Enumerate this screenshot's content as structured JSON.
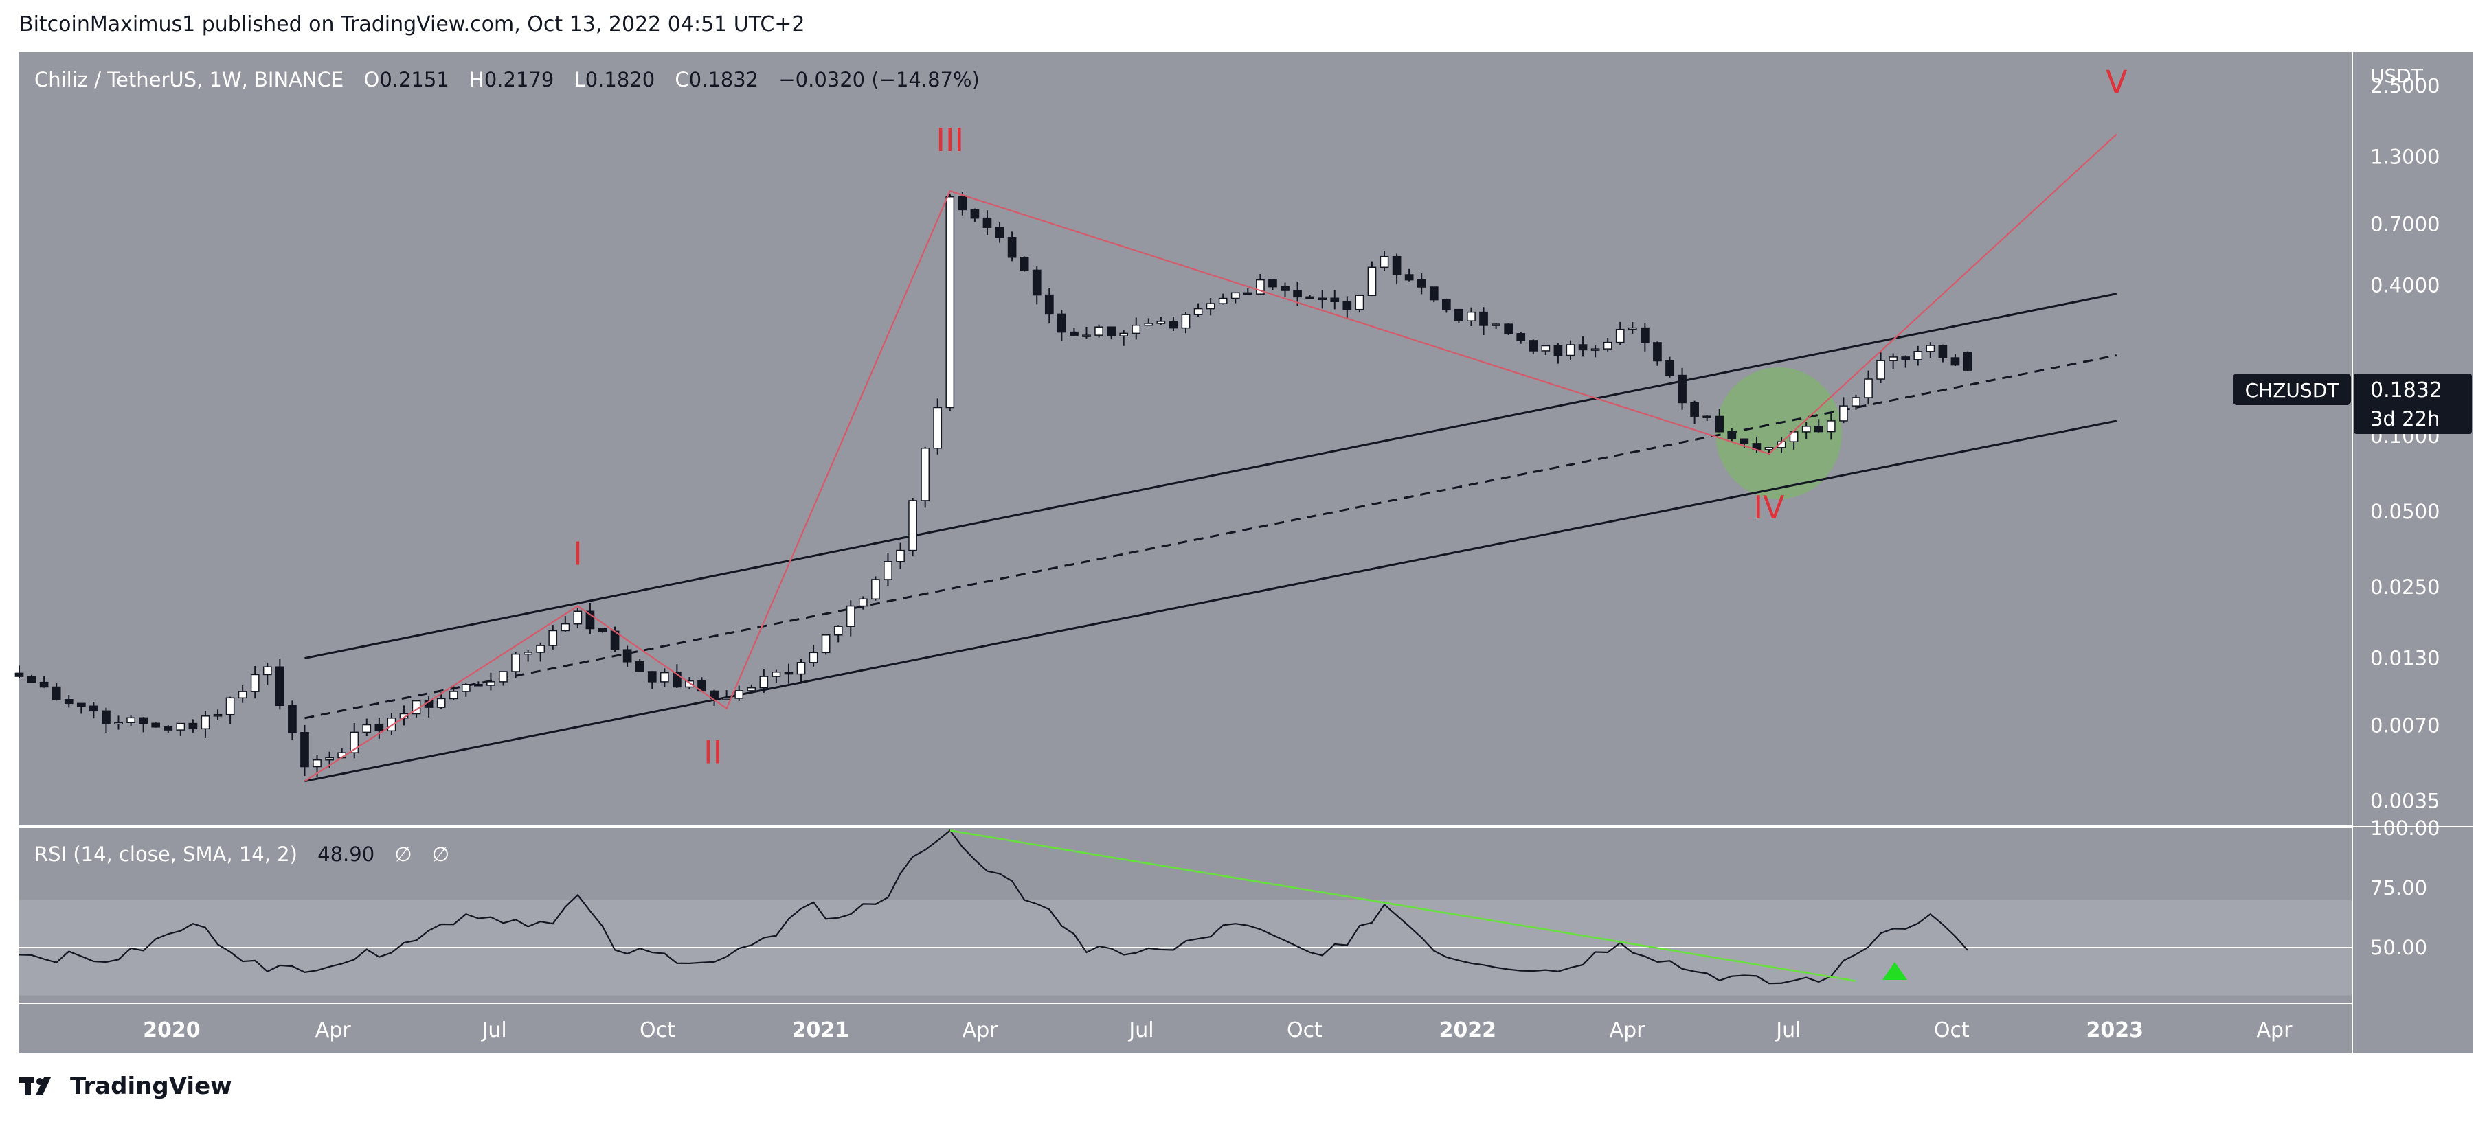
{
  "header": {
    "credit": "BitcoinMaximus1 published on TradingView.com, Oct 13, 2022 04:51 UTC+2"
  },
  "legend": {
    "symbol": "Chiliz / TetherUS, 1W, BINANCE",
    "o_label": "O",
    "o_value": "0.2151",
    "h_label": "H",
    "h_value": "0.2179",
    "l_label": "L",
    "l_value": "0.1820",
    "c_label": "C",
    "c_value": "0.1832",
    "change": "−0.0320 (−14.87%)"
  },
  "rsi_legend": {
    "label": "RSI (14, close, SMA, 14, 2)",
    "value": "48.90",
    "sym1": "∅",
    "sym2": "∅"
  },
  "price_axis": {
    "currency": "USDT",
    "ticks": [
      "2.5000",
      "1.3000",
      "0.7000",
      "0.4000",
      "0.1832",
      "0.1000",
      "0.0500",
      "0.0250",
      "0.0130",
      "0.0070",
      "0.0035"
    ]
  },
  "price_tag": {
    "ticker": "CHZUSDT",
    "price": "0.1832",
    "countdown": "3d 22h"
  },
  "rsi_axis": {
    "ticks": [
      "100.00",
      "75.00",
      "50.00"
    ]
  },
  "time_axis": [
    "2020",
    "Apr",
    "Jul",
    "Oct",
    "2021",
    "Apr",
    "Jul",
    "Oct",
    "2022",
    "Apr",
    "Jul",
    "Oct",
    "2023",
    "Apr"
  ],
  "wave_labels": [
    "I",
    "II",
    "III",
    "IV",
    "V"
  ],
  "footer": {
    "brand": "TradingView"
  },
  "colors": {
    "panel": "#9598a1",
    "rsi_band": "#a3a6ae",
    "wave": "#e0323a",
    "wave_line": "#d65a6a",
    "channel": "#131722",
    "rsi_line": "#131722",
    "rsi_trend": "#66e23b",
    "highlight": "#7fb56a",
    "up_candle": "#ffffff",
    "down_candle": "#131722",
    "arrow": "#22dd22"
  },
  "chart_data": {
    "type": "candlestick",
    "symbol": "CHZUSDT",
    "interval": "1W",
    "y_scale": "log",
    "ylim": [
      0.0028,
      3.4
    ],
    "x_range": [
      "2019-10-07",
      "2023-05-15"
    ],
    "last_candle": {
      "o": 0.2151,
      "h": 0.2179,
      "l": 0.182,
      "c": 0.1832
    },
    "ohlc_keyframes": [
      {
        "date": "2019-10-07",
        "close": 0.011
      },
      {
        "date": "2019-12-02",
        "close": 0.0072
      },
      {
        "date": "2020-01-13",
        "close": 0.0068
      },
      {
        "date": "2020-02-24",
        "close": 0.012
      },
      {
        "date": "2020-03-16",
        "close": 0.0048
      },
      {
        "date": "2020-05-04",
        "close": 0.0075
      },
      {
        "date": "2020-07-06",
        "close": 0.0115
      },
      {
        "date": "2020-08-17",
        "close": 0.02
      },
      {
        "date": "2020-09-21",
        "close": 0.0115
      },
      {
        "date": "2020-11-09",
        "close": 0.009
      },
      {
        "date": "2020-12-21",
        "close": 0.0125
      },
      {
        "date": "2021-01-18",
        "close": 0.021
      },
      {
        "date": "2021-02-15",
        "close": 0.035
      },
      {
        "date": "2021-03-08",
        "close": 0.13
      },
      {
        "date": "2021-03-15",
        "close": 0.9
      },
      {
        "date": "2021-04-12",
        "close": 0.62
      },
      {
        "date": "2021-05-17",
        "close": 0.26
      },
      {
        "date": "2021-07-19",
        "close": 0.27
      },
      {
        "date": "2021-09-06",
        "close": 0.42
      },
      {
        "date": "2021-10-25",
        "close": 0.32
      },
      {
        "date": "2021-11-15",
        "close": 0.52
      },
      {
        "date": "2021-12-20",
        "close": 0.32
      },
      {
        "date": "2022-02-21",
        "close": 0.21
      },
      {
        "date": "2022-04-04",
        "close": 0.27
      },
      {
        "date": "2022-05-09",
        "close": 0.12
      },
      {
        "date": "2022-06-20",
        "close": 0.09
      },
      {
        "date": "2022-07-25",
        "close": 0.115
      },
      {
        "date": "2022-08-22",
        "close": 0.2
      },
      {
        "date": "2022-09-19",
        "close": 0.23
      },
      {
        "date": "2022-10-10",
        "close": 0.1832
      }
    ],
    "channel_upper": [
      {
        "date": "2020-03-16",
        "price": 0.013
      },
      {
        "date": "2023-01-02",
        "price": 0.37
      }
    ],
    "channel_lower": [
      {
        "date": "2020-03-16",
        "price": 0.0042
      },
      {
        "date": "2023-01-02",
        "price": 0.115
      }
    ],
    "channel_mid": [
      {
        "date": "2020-03-16",
        "price": 0.0075
      },
      {
        "date": "2023-01-02",
        "price": 0.21
      }
    ],
    "waves": [
      {
        "label": "I",
        "date": "2020-08-17",
        "price": 0.021
      },
      {
        "label": "II",
        "date": "2020-11-09",
        "price": 0.0082
      },
      {
        "label": "III",
        "date": "2021-03-15",
        "price": 0.95
      },
      {
        "label": "IV",
        "date": "2022-06-20",
        "price": 0.085
      },
      {
        "label": "V",
        "date": "2023-01-02",
        "price": 1.6
      }
    ],
    "rsi": {
      "ylim": [
        27,
        100
      ],
      "band": [
        30,
        70
      ],
      "last": 48.9,
      "keyframes": [
        {
          "date": "2019-10-07",
          "value": 47
        },
        {
          "date": "2019-12-02",
          "value": 45
        },
        {
          "date": "2020-01-13",
          "value": 60
        },
        {
          "date": "2020-02-24",
          "value": 40
        },
        {
          "date": "2020-04-13",
          "value": 45
        },
        {
          "date": "2020-05-11",
          "value": 52
        },
        {
          "date": "2020-06-15",
          "value": 64
        },
        {
          "date": "2020-08-03",
          "value": 60
        },
        {
          "date": "2020-08-17",
          "value": 72
        },
        {
          "date": "2020-09-07",
          "value": 49
        },
        {
          "date": "2020-11-02",
          "value": 44
        },
        {
          "date": "2020-12-07",
          "value": 55
        },
        {
          "date": "2020-12-28",
          "value": 69
        },
        {
          "date": "2021-01-04",
          "value": 62
        },
        {
          "date": "2021-02-08",
          "value": 71
        },
        {
          "date": "2021-02-22",
          "value": 88
        },
        {
          "date": "2021-03-15",
          "value": 99
        },
        {
          "date": "2021-04-05",
          "value": 82
        },
        {
          "date": "2021-05-10",
          "value": 66
        },
        {
          "date": "2021-05-31",
          "value": 48
        },
        {
          "date": "2021-07-19",
          "value": 49
        },
        {
          "date": "2021-08-23",
          "value": 60
        },
        {
          "date": "2021-10-04",
          "value": 48
        },
        {
          "date": "2021-10-25",
          "value": 51
        },
        {
          "date": "2021-11-15",
          "value": 68
        },
        {
          "date": "2021-12-20",
          "value": 46
        },
        {
          "date": "2022-02-21",
          "value": 40
        },
        {
          "date": "2022-03-28",
          "value": 52
        },
        {
          "date": "2022-05-09",
          "value": 40
        },
        {
          "date": "2022-06-20",
          "value": 35
        },
        {
          "date": "2022-07-25",
          "value": 38
        },
        {
          "date": "2022-08-22",
          "value": 56
        },
        {
          "date": "2022-09-19",
          "value": 64
        },
        {
          "date": "2022-10-10",
          "value": 48.9
        }
      ],
      "trendline": [
        {
          "date": "2021-03-15",
          "value": 99
        },
        {
          "date": "2022-08-08",
          "value": 36
        }
      ]
    }
  }
}
